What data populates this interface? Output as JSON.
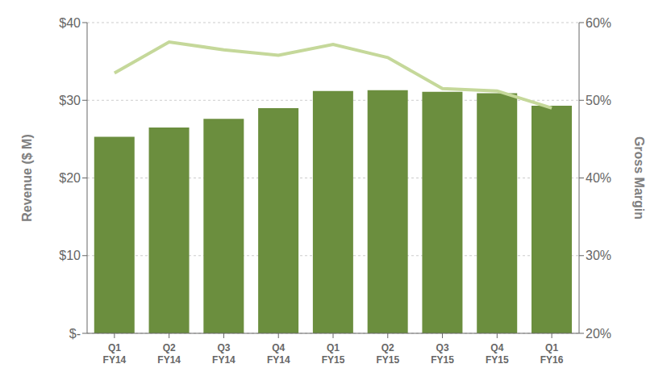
{
  "chart_data": {
    "type": "bar",
    "categories": [
      "Q1\nFY14",
      "Q2\nFY14",
      "Q3\nFY14",
      "Q4\nFY14",
      "Q1\nFY15",
      "Q2\nFY15",
      "Q3\nFY15",
      "Q4\nFY15",
      "Q1\nFY16"
    ],
    "ylabel": "Revenue ($ M)",
    "y2label": "Gross Margin",
    "series": [
      {
        "type": "bar",
        "color": "#6b8e3e",
        "values": [
          25.3,
          26.5,
          27.6,
          29.0,
          31.2,
          31.3,
          31.1,
          30.9,
          29.3
        ]
      },
      {
        "type": "line",
        "axis": "y2",
        "color": "#c5d89a",
        "values": [
          0.535,
          0.575,
          0.565,
          0.558,
          0.572,
          0.555,
          0.515,
          0.512,
          0.49
        ]
      }
    ],
    "ylim": [
      0,
      40
    ],
    "yticks": [
      {
        "value": 0,
        "label": "$-"
      },
      {
        "value": 10,
        "label": "$10"
      },
      {
        "value": 20,
        "label": "$20"
      },
      {
        "value": 30,
        "label": "$30"
      },
      {
        "value": 40,
        "label": "$40"
      }
    ],
    "y2lim": [
      0.2,
      0.6
    ],
    "y2ticks": [
      {
        "value": 0.2,
        "label": "20%"
      },
      {
        "value": 0.3,
        "label": "30%"
      },
      {
        "value": 0.4,
        "label": "40%"
      },
      {
        "value": 0.5,
        "label": "50%"
      },
      {
        "value": 0.6,
        "label": "60%"
      }
    ],
    "grid": true
  }
}
